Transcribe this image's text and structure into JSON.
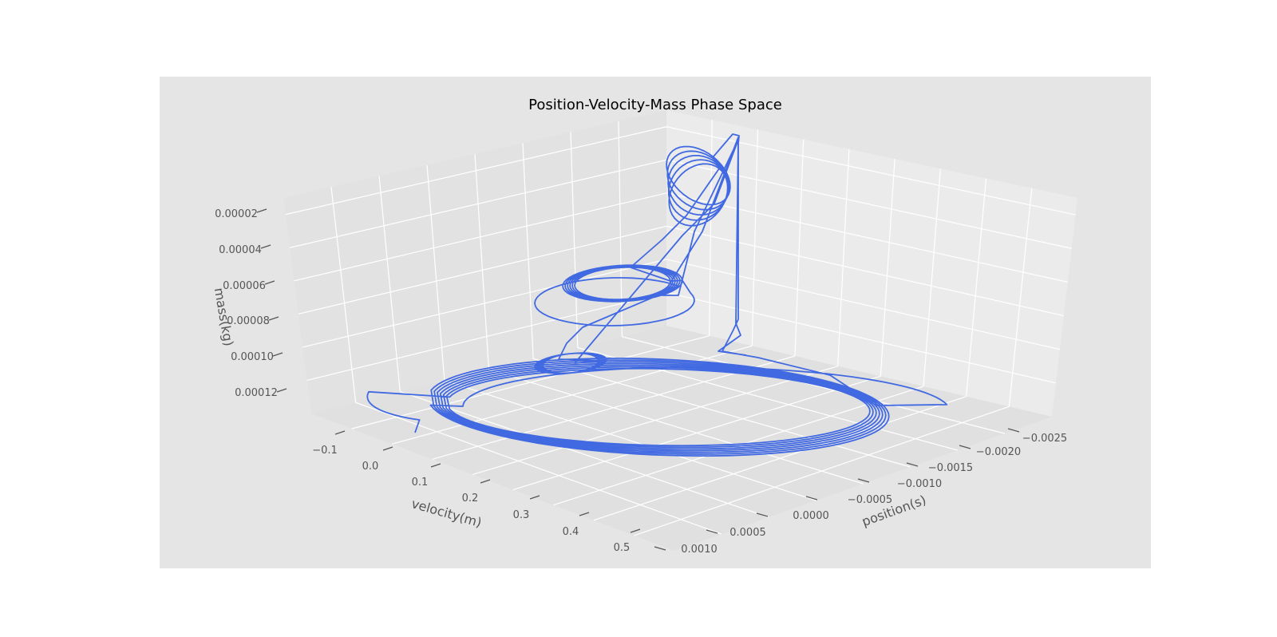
{
  "chart_data": {
    "type": "line",
    "title": "Position-Velocity-Mass Phase Space",
    "xlabel": "position(s)",
    "ylabel": "velocity(m)",
    "zlabel": "mass(kg)",
    "x_ticks": [
      "0.0010",
      "0.0005",
      "0.0000",
      "−0.0005",
      "−0.0010",
      "−0.0015",
      "−0.0020",
      "−0.0025"
    ],
    "y_ticks": [
      "−0.1",
      "0.0",
      "0.1",
      "0.2",
      "0.3",
      "0.4",
      "0.5"
    ],
    "z_ticks": [
      "0.00002",
      "0.00004",
      "0.00006",
      "0.00008",
      "0.00010",
      "0.00012"
    ],
    "series": [
      {
        "color": "#4169e1",
        "description": "3D phase-space trajectory (position, velocity, mass)"
      }
    ],
    "grid": true,
    "background": "#e5e5e5",
    "pane_color": "#ebebeb",
    "line_color": "#4169e1"
  }
}
